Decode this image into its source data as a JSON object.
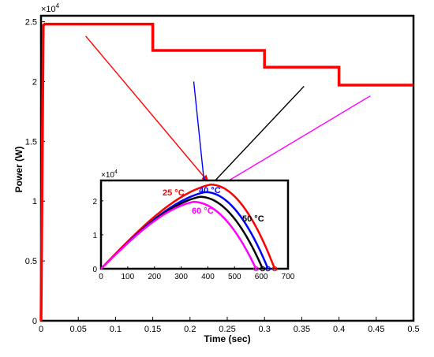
{
  "chart_data": [
    {
      "type": "line",
      "xlabel": "Time (sec)",
      "ylabel": "Power (W)",
      "exponent_label": "×10",
      "exponent_power": "4",
      "xlim": [
        0,
        0.5
      ],
      "ylim": [
        0,
        25500
      ],
      "xticks": [
        0,
        0.05,
        0.1,
        0.15,
        0.2,
        0.25,
        0.3,
        0.35,
        0.4,
        0.45,
        0.5
      ],
      "xtick_labels": [
        "0",
        "0.05",
        "0.1",
        "0.15",
        "0.2",
        "0.25",
        "0.3",
        "0.35",
        "0.4",
        "0.45",
        "0.5"
      ],
      "yticks": [
        0,
        5000,
        10000,
        15000,
        20000,
        25000
      ],
      "ytick_labels": [
        "0",
        "0.5",
        "1",
        "1.5",
        "2",
        "2.5"
      ],
      "series": [
        {
          "color": "#ff0000",
          "x": [
            0,
            0.003,
            0.005,
            0.15,
            0.15,
            0.3,
            0.3,
            0.4,
            0.4,
            0.5
          ],
          "y": [
            0,
            24700,
            24800,
            24800,
            22600,
            22600,
            21200,
            21200,
            19700,
            19700
          ]
        }
      ]
    },
    {
      "type": "line",
      "exponent_label": "×10",
      "exponent_power": "4",
      "xlim": [
        0,
        700
      ],
      "ylim": [
        0,
        26000
      ],
      "xticks": [
        0,
        100,
        200,
        300,
        400,
        500,
        600,
        700
      ],
      "xtick_labels": [
        "0",
        "100",
        "200",
        "300",
        "400",
        "500",
        "600",
        "700"
      ],
      "yticks": [
        0,
        10000,
        20000
      ],
      "ytick_labels": [
        "0",
        "1",
        "2"
      ],
      "series": [
        {
          "name": "25 °C",
          "color": "#ff0000",
          "vmp": 410,
          "pmax": 24800,
          "voc": 650
        },
        {
          "name": "40 °C",
          "color": "#0000ff",
          "vmp": 390,
          "pmax": 22600,
          "voc": 625
        },
        {
          "name": "50 °C",
          "color": "#000000",
          "vmp": 370,
          "pmax": 21200,
          "voc": 605
        },
        {
          "name": "60 °C",
          "color": "#ff00ff",
          "vmp": 345,
          "pmax": 19700,
          "voc": 580
        }
      ],
      "annotations": [
        "25 °C",
        "40 °C",
        "50 °C",
        "60 °C"
      ]
    }
  ]
}
